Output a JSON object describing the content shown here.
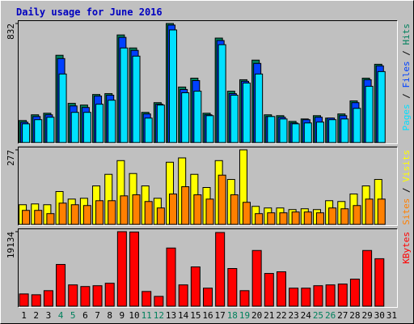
{
  "chart_data": {
    "type": "bar",
    "title": "Daily usage for June 2016",
    "categories": [
      "1",
      "2",
      "3",
      "4",
      "5",
      "6",
      "7",
      "8",
      "9",
      "10",
      "11",
      "12",
      "13",
      "14",
      "15",
      "16",
      "17",
      "18",
      "19",
      "20",
      "21",
      "22",
      "23",
      "24",
      "25",
      "26",
      "27",
      "28",
      "29",
      "30",
      "31"
    ],
    "category_colors": [
      "#000000",
      "#000000",
      "#000000",
      "#00805c",
      "#00805c",
      "#000000",
      "#000000",
      "#000000",
      "#000000",
      "#000000",
      "#00805c",
      "#00805c",
      "#000000",
      "#000000",
      "#000000",
      "#000000",
      "#000000",
      "#00805c",
      "#00805c",
      "#000000",
      "#000000",
      "#000000",
      "#000000",
      "#000000",
      "#00805c",
      "#00805c",
      "#000000",
      "#000000",
      "#000000",
      "#000000",
      "#000000"
    ],
    "legend_separator": " / ",
    "panels": [
      {
        "ylim": [
          0,
          832
        ],
        "yticks": [
          832
        ],
        "series": [
          {
            "name": "Hits",
            "color": "#00805c",
            "values": [
              154,
              194,
              205,
              610,
              274,
              262,
              336,
              342,
              752,
              661,
              211,
              279,
              832,
              388,
              450,
              205,
              730,
              359,
              439,
              576,
              194,
              188,
              148,
              165,
              188,
              171,
              200,
              291,
              450,
              547,
              null
            ]
          },
          {
            "name": "Files",
            "color": "#0040ff",
            "values": [
              142,
              182,
              194,
              587,
              256,
              245,
              325,
              331,
              735,
              644,
              200,
              268,
              821,
              371,
              433,
              194,
              713,
              342,
              428,
              553,
              182,
              177,
              137,
              160,
              177,
              171,
              188,
              279,
              439,
              536,
              null
            ]
          },
          {
            "name": "Pages",
            "color": "#00e0ff",
            "values": [
              131,
              160,
              177,
              479,
              211,
              211,
              268,
              296,
              661,
              604,
              171,
              262,
              787,
              348,
              359,
              188,
              684,
              331,
              416,
              479,
              182,
              165,
              131,
              137,
              143,
              160,
              165,
              239,
              393,
              496,
              null
            ]
          }
        ]
      },
      {
        "ylim": [
          0,
          277
        ],
        "yticks": [
          277
        ],
        "series": [
          {
            "name": "Visits",
            "color": "#ffff00",
            "values": [
              73,
              76,
              73,
              122,
              94,
              97,
              143,
              186,
              237,
              189,
              143,
              97,
              231,
              247,
              186,
              137,
              237,
              167,
              277,
              67,
              61,
              61,
              55,
              58,
              55,
              88,
              85,
              113,
              143,
              167,
              null
            ]
          },
          {
            "name": "Sites",
            "color": "#ff8000",
            "values": [
              52,
              52,
              40,
              79,
              73,
              70,
              88,
              88,
              106,
              110,
              85,
              61,
              113,
              140,
              110,
              94,
              183,
              110,
              82,
              40,
              43,
              43,
              46,
              46,
              43,
              61,
              58,
              70,
              94,
              94,
              null
            ]
          }
        ]
      },
      {
        "ylim": [
          0,
          19134
        ],
        "yticks": [
          19134
        ],
        "series": [
          {
            "name": "KBytes",
            "color": "#ff0000",
            "values": [
              3150,
              2940,
              3990,
              10720,
              5470,
              5050,
              5260,
              5890,
              19134,
              19050,
              3780,
              2520,
              14930,
              5470,
              10090,
              4630,
              18920,
              9670,
              3990,
              14300,
              8410,
              8830,
              4630,
              4630,
              5260,
              5470,
              5680,
              6940,
              14300,
              12190,
              null
            ]
          }
        ]
      }
    ]
  }
}
